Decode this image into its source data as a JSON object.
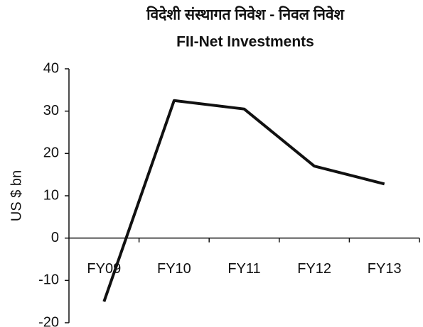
{
  "chart_data": {
    "type": "line",
    "title": "विदेशी संस्थागत निवेश - निवल निवेश",
    "subtitle": "FII-Net Investments",
    "y_label": "US $ bn",
    "categories": [
      "FY09",
      "FY10",
      "FY11",
      "FY12",
      "FY13"
    ],
    "values": [
      -15,
      32.5,
      30.5,
      17,
      12.8
    ],
    "color": "#111111",
    "ylim": [
      -20,
      40
    ],
    "yticks": [
      -20,
      -10,
      0,
      10,
      20,
      30,
      40
    ],
    "grid": false
  }
}
